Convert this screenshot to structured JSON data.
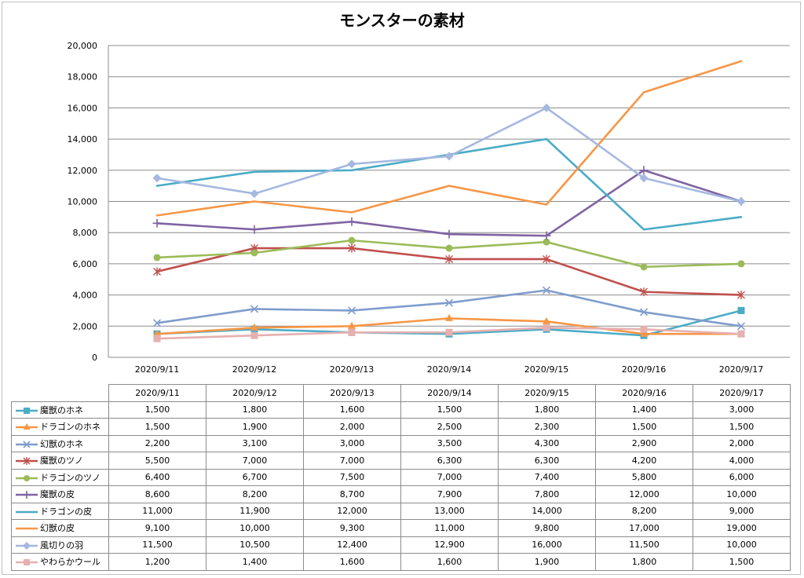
{
  "chart_data": {
    "type": "line",
    "title": "モンスターの素材",
    "xlabel": "",
    "ylabel": "",
    "ylim": [
      0,
      20000
    ],
    "ytick_step": 2000,
    "ytick_labels": [
      "0",
      "2,000",
      "4,000",
      "6,000",
      "8,000",
      "10,000",
      "12,000",
      "14,000",
      "16,000",
      "18,000",
      "20,000"
    ],
    "grid": true,
    "legend": "data-table",
    "categories": [
      "2020/9/11",
      "2020/9/12",
      "2020/9/13",
      "2020/9/14",
      "2020/9/15",
      "2020/9/16",
      "2020/9/17"
    ],
    "series": [
      {
        "name": "魔獣のホネ",
        "color": "#4bacc6",
        "marker": "square",
        "values": [
          1500,
          1800,
          1600,
          1500,
          1800,
          1400,
          3000
        ],
        "labels": [
          "1,500",
          "1,800",
          "1,600",
          "1,500",
          "1,800",
          "1,400",
          "3,000"
        ]
      },
      {
        "name": "ドラゴンのホネ",
        "color": "#f79646",
        "marker": "triangle",
        "values": [
          1500,
          1900,
          2000,
          2500,
          2300,
          1500,
          1500
        ],
        "labels": [
          "1,500",
          "1,900",
          "2,000",
          "2,500",
          "2,300",
          "1,500",
          "1,500"
        ]
      },
      {
        "name": "幻獣のホネ",
        "color": "#7f9dcc",
        "marker": "x",
        "values": [
          2200,
          3100,
          3000,
          3500,
          4300,
          2900,
          2000
        ],
        "labels": [
          "2,200",
          "3,100",
          "3,000",
          "3,500",
          "4,300",
          "2,900",
          "2,000"
        ]
      },
      {
        "name": "魔獣のツノ",
        "color": "#c0504d",
        "marker": "star",
        "values": [
          5500,
          7000,
          7000,
          6300,
          6300,
          4200,
          4000
        ],
        "labels": [
          "5,500",
          "7,000",
          "7,000",
          "6,300",
          "6,300",
          "4,200",
          "4,000"
        ]
      },
      {
        "name": "ドラゴンのツノ",
        "color": "#9bbb59",
        "marker": "circle",
        "values": [
          6400,
          6700,
          7500,
          7000,
          7400,
          5800,
          6000
        ],
        "labels": [
          "6,400",
          "6,700",
          "7,500",
          "7,000",
          "7,400",
          "5,800",
          "6,000"
        ]
      },
      {
        "name": "魔獣の皮",
        "color": "#8064a2",
        "marker": "plus",
        "values": [
          8600,
          8200,
          8700,
          7900,
          7800,
          12000,
          10000
        ],
        "labels": [
          "8,600",
          "8,200",
          "8,700",
          "7,900",
          "7,800",
          "12,000",
          "10,000"
        ]
      },
      {
        "name": "ドラゴンの皮",
        "color": "#4bacc6",
        "marker": "none",
        "values": [
          11000,
          11900,
          12000,
          13000,
          14000,
          8200,
          9000
        ],
        "labels": [
          "11,000",
          "11,900",
          "12,000",
          "13,000",
          "14,000",
          "8,200",
          "9,000"
        ]
      },
      {
        "name": "幻獣の皮",
        "color": "#f79646",
        "marker": "none",
        "values": [
          9100,
          10000,
          9300,
          11000,
          9800,
          17000,
          19000
        ],
        "labels": [
          "9,100",
          "10,000",
          "9,300",
          "11,000",
          "9,800",
          "17,000",
          "19,000"
        ]
      },
      {
        "name": "風切りの羽",
        "color": "#a5b8e0",
        "marker": "diamond",
        "values": [
          11500,
          10500,
          12400,
          12900,
          16000,
          11500,
          10000
        ],
        "labels": [
          "11,500",
          "10,500",
          "12,400",
          "12,900",
          "16,000",
          "11,500",
          "10,000"
        ]
      },
      {
        "name": "やわらかウール",
        "color": "#e6b0b0",
        "marker": "square",
        "values": [
          1200,
          1400,
          1600,
          1600,
          1900,
          1800,
          1500
        ],
        "labels": [
          "1,200",
          "1,400",
          "1,600",
          "1,600",
          "1,900",
          "1,800",
          "1,500"
        ]
      }
    ]
  }
}
